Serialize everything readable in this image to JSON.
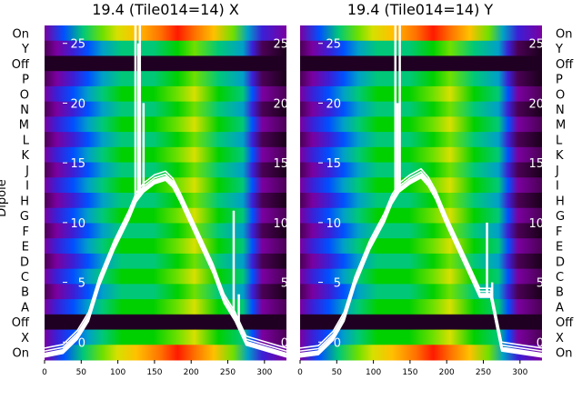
{
  "chart_data": [
    {
      "type": "heatmap",
      "title": "19.4 (Tile014=14) X",
      "ylabel": "Dipole",
      "row_labels": [
        "On",
        "Y",
        "Off",
        "P",
        "O",
        "N",
        "M",
        "L",
        "K",
        "J",
        "I",
        "H",
        "G",
        "F",
        "E",
        "D",
        "C",
        "B",
        "A",
        "Off",
        "X",
        "On"
      ],
      "x_ticks": [
        0,
        50,
        100,
        150,
        200,
        250,
        300
      ],
      "xlim": [
        0,
        330
      ],
      "overlay_y_ticks": [
        0,
        5,
        10,
        15,
        20,
        25
      ],
      "overlay_ylim": [
        -1.5,
        26.5
      ],
      "overlay_line": {
        "x": [
          0,
          25,
          45,
          60,
          75,
          95,
          115,
          125,
          135,
          150,
          165,
          175,
          185,
          200,
          215,
          230,
          245,
          260,
          275,
          330
        ],
        "y": [
          -1,
          -0.7,
          0.5,
          2,
          5,
          8,
          10.5,
          12,
          12.8,
          13.5,
          13.8,
          13.2,
          12,
          10,
          8,
          6,
          3.5,
          2,
          0,
          -1
        ],
        "spike_x": [
          124,
          128,
          130,
          135,
          250,
          258,
          265
        ],
        "spike_y": [
          27,
          25,
          27,
          20,
          3,
          11,
          4
        ]
      }
    },
    {
      "type": "heatmap",
      "title": "19.4 (Tile014=14) Y",
      "row_labels": [
        "On",
        "Y",
        "Off",
        "P",
        "O",
        "N",
        "M",
        "L",
        "K",
        "J",
        "I",
        "H",
        "G",
        "F",
        "E",
        "D",
        "C",
        "B",
        "A",
        "Off",
        "X",
        "On"
      ],
      "x_ticks": [
        0,
        50,
        100,
        150,
        200,
        250,
        300
      ],
      "xlim": [
        0,
        330
      ],
      "overlay_y_ticks": [
        0,
        5,
        10,
        15,
        20,
        25
      ],
      "overlay_ylim": [
        -1.5,
        26.5
      ],
      "overlay_line": {
        "x": [
          0,
          25,
          45,
          60,
          75,
          95,
          115,
          125,
          135,
          150,
          165,
          175,
          185,
          200,
          215,
          230,
          245,
          260,
          275,
          330
        ],
        "y": [
          -1,
          -0.8,
          0.4,
          2,
          5,
          8,
          10.3,
          11.8,
          12.8,
          13.5,
          14,
          13.3,
          12.2,
          10,
          8,
          6,
          4,
          4,
          -0.5,
          -1
        ],
        "spike_x": [
          130,
          133,
          136,
          248,
          255,
          262
        ],
        "spike_y": [
          27,
          20,
          27,
          4,
          10,
          5
        ]
      }
    }
  ],
  "colors": {
    "colormap": [
      "#1a001a",
      "#4b0055",
      "#7a00a0",
      "#3b1fd6",
      "#0050ff",
      "#00a0c8",
      "#00c878",
      "#00d000",
      "#6ee000",
      "#d6e000",
      "#ffc000",
      "#ff7000",
      "#ff1a00"
    ],
    "overlay_line": "#ffffff",
    "band_off": "#200022"
  }
}
